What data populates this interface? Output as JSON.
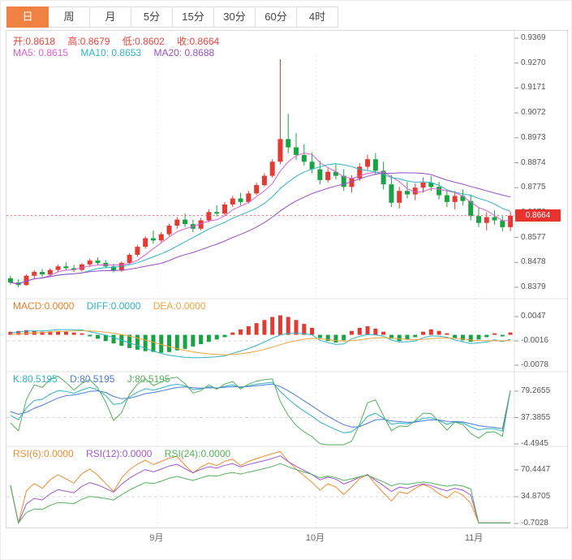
{
  "tabbar": {
    "tabs": [
      {
        "label": "日",
        "active": true
      },
      {
        "label": "周",
        "active": false
      },
      {
        "label": "月",
        "active": false
      },
      {
        "label": "5分",
        "active": false
      },
      {
        "label": "15分",
        "active": false
      },
      {
        "label": "30分",
        "active": false
      },
      {
        "label": "60分",
        "active": false
      },
      {
        "label": "4时",
        "active": false
      }
    ]
  },
  "legends": {
    "ohlc": {
      "open": "开:0.8618",
      "high": "高:0.8679",
      "low": "低:0.8602",
      "close": "收:0.8664"
    },
    "ma": {
      "ma5": "MA5: 0.8615",
      "ma10": "MA10: 0.8653",
      "ma20": "MA20: 0.8688"
    },
    "macd": {
      "macd": "MACD:0.0000",
      "diff": "DIFF:0.0000",
      "dea": "DEA:0.0000"
    },
    "kdj": {
      "k": "K:80.5195",
      "d": "D:80.5195",
      "j": "J:80.5195"
    },
    "rsi": {
      "rsi6": "RSI(6):0.0000",
      "rsi12": "RSI(12):0.0000",
      "rsi24": "RSI(24):0.0000"
    }
  },
  "colors": {
    "up": "#e23b33",
    "down": "#18a344",
    "ohlc_text": "#e8453c",
    "ma5": "#de5ed2",
    "ma10": "#2fb3c6",
    "ma20": "#9a4ec5",
    "macd_label": "#f07e28",
    "diff": "#2fb3c6",
    "dea": "#f0a43c",
    "k": "#2fb3c6",
    "d": "#4a7bd4",
    "j": "#53b25a",
    "rsi6": "#f08d2f",
    "rsi12": "#a356cf",
    "rsi24": "#53b25a",
    "price_line": "#f06a6a",
    "price_badge_bg": "#e8322e",
    "tab_active_bg": "#f08142"
  },
  "chart_data": {
    "type": "candlestick",
    "panels": [
      "price_ma",
      "macd",
      "kdj",
      "rsi"
    ],
    "x_axis": {
      "month_ticks": [
        {
          "label": "9月",
          "bar": 19
        },
        {
          "label": "10月",
          "bar": 39
        },
        {
          "label": "11月",
          "bar": 59
        }
      ]
    },
    "price_panel": {
      "yticks": [
        "0.9369",
        "0.9270",
        "0.9171",
        "0.9072",
        "0.8973",
        "0.8874",
        "0.8775",
        "0.8676",
        "0.8577",
        "0.8478",
        "0.8379"
      ],
      "ymax": 0.9369,
      "ymin": 0.8379,
      "last_price": "0.8664",
      "ma_periods": [
        5,
        10,
        20
      ],
      "candles_ohlc": [
        [
          0.8415,
          0.8425,
          0.839,
          0.8398
        ],
        [
          0.8398,
          0.8412,
          0.8379,
          0.8388
        ],
        [
          0.8388,
          0.843,
          0.8385,
          0.8425
        ],
        [
          0.8425,
          0.8448,
          0.8415,
          0.844
        ],
        [
          0.844,
          0.8452,
          0.842,
          0.843
        ],
        [
          0.843,
          0.8455,
          0.8422,
          0.8448
        ],
        [
          0.8448,
          0.847,
          0.8438,
          0.8462
        ],
        [
          0.8462,
          0.8478,
          0.8448,
          0.8455
        ],
        [
          0.8455,
          0.8468,
          0.844,
          0.8448
        ],
        [
          0.8448,
          0.8475,
          0.8442,
          0.847
        ],
        [
          0.847,
          0.8492,
          0.846,
          0.8485
        ],
        [
          0.8485,
          0.8498,
          0.8468,
          0.8476
        ],
        [
          0.8476,
          0.8488,
          0.8455,
          0.8462
        ],
        [
          0.8462,
          0.8472,
          0.8438,
          0.8445
        ],
        [
          0.8445,
          0.8482,
          0.844,
          0.8476
        ],
        [
          0.8476,
          0.8515,
          0.847,
          0.8508
        ],
        [
          0.8508,
          0.8548,
          0.85,
          0.854
        ],
        [
          0.854,
          0.8582,
          0.8532,
          0.8574
        ],
        [
          0.8574,
          0.8605,
          0.8552,
          0.8565
        ],
        [
          0.8565,
          0.8598,
          0.8558,
          0.859
        ],
        [
          0.859,
          0.8632,
          0.8582,
          0.8624
        ],
        [
          0.8624,
          0.8658,
          0.8612,
          0.8648
        ],
        [
          0.8648,
          0.8672,
          0.8618,
          0.863
        ],
        [
          0.863,
          0.8648,
          0.8598,
          0.8612
        ],
        [
          0.8612,
          0.8655,
          0.8605,
          0.8645
        ],
        [
          0.8645,
          0.8688,
          0.8638,
          0.8678
        ],
        [
          0.8678,
          0.8705,
          0.866,
          0.8672
        ],
        [
          0.8672,
          0.8718,
          0.8665,
          0.8708
        ],
        [
          0.8708,
          0.8742,
          0.8698,
          0.8732
        ],
        [
          0.8732,
          0.8755,
          0.8705,
          0.8718
        ],
        [
          0.8718,
          0.8762,
          0.8712,
          0.8752
        ],
        [
          0.8752,
          0.8795,
          0.8745,
          0.8785
        ],
        [
          0.8785,
          0.8832,
          0.8778,
          0.8822
        ],
        [
          0.8822,
          0.8888,
          0.8815,
          0.8878
        ],
        [
          0.8878,
          0.9285,
          0.8868,
          0.8968
        ],
        [
          0.8968,
          0.9068,
          0.8912,
          0.8935
        ],
        [
          0.8935,
          0.8992,
          0.8885,
          0.8905
        ],
        [
          0.8905,
          0.8948,
          0.8862,
          0.8878
        ],
        [
          0.8878,
          0.8915,
          0.8832,
          0.8848
        ],
        [
          0.8848,
          0.8882,
          0.8788,
          0.8805
        ],
        [
          0.8805,
          0.8852,
          0.8795,
          0.8838
        ],
        [
          0.8838,
          0.8868,
          0.8808,
          0.8822
        ],
        [
          0.8822,
          0.8848,
          0.8762,
          0.8778
        ],
        [
          0.8778,
          0.8825,
          0.8755,
          0.8812
        ],
        [
          0.8812,
          0.8872,
          0.8802,
          0.8858
        ],
        [
          0.8858,
          0.8905,
          0.8845,
          0.8888
        ],
        [
          0.8888,
          0.8912,
          0.8825,
          0.8842
        ],
        [
          0.8842,
          0.8878,
          0.8768,
          0.8788
        ],
        [
          0.8788,
          0.8825,
          0.8698,
          0.8715
        ],
        [
          0.8715,
          0.8778,
          0.8692,
          0.8762
        ],
        [
          0.8762,
          0.8798,
          0.8732,
          0.8748
        ],
        [
          0.8748,
          0.8792,
          0.8725,
          0.8775
        ],
        [
          0.8775,
          0.8815,
          0.8755,
          0.8795
        ],
        [
          0.8795,
          0.8822,
          0.8762,
          0.8778
        ],
        [
          0.8778,
          0.8798,
          0.8728,
          0.8745
        ],
        [
          0.8745,
          0.8768,
          0.8698,
          0.8718
        ],
        [
          0.8718,
          0.8762,
          0.8688,
          0.8742
        ],
        [
          0.8742,
          0.8768,
          0.8705,
          0.8722
        ],
        [
          0.8722,
          0.8748,
          0.8645,
          0.8662
        ],
        [
          0.8662,
          0.8695,
          0.8618,
          0.8635
        ],
        [
          0.8635,
          0.8678,
          0.8605,
          0.8658
        ],
        [
          0.8658,
          0.8685,
          0.8628,
          0.8645
        ],
        [
          0.8645,
          0.8662,
          0.8602,
          0.8618
        ],
        [
          0.8618,
          0.8679,
          0.8602,
          0.8664
        ]
      ]
    },
    "macd_panel": {
      "yticks": [
        "0.0047",
        "-0.0016",
        "-0.0078"
      ],
      "ymax": 0.0047,
      "ymin": -0.0078,
      "histogram": [
        0.0008,
        0.001,
        0.0012,
        0.001,
        0.0008,
        0.0009,
        0.001,
        0.0008,
        0.0006,
        0.0004,
        -0.0004,
        -0.001,
        -0.0016,
        -0.0022,
        -0.0028,
        -0.0034,
        -0.0038,
        -0.0042,
        -0.0044,
        -0.0046,
        -0.0044,
        -0.004,
        -0.0036,
        -0.003,
        -0.0024,
        -0.0018,
        -0.0012,
        -0.0006,
        0.0006,
        0.0014,
        0.0022,
        0.003,
        0.0038,
        0.0046,
        0.005,
        0.0046,
        0.0038,
        0.0028,
        0.0018,
        -0.0008,
        -0.0016,
        -0.002,
        -0.0014,
        0.001,
        0.0018,
        0.0022,
        0.0016,
        0.0008,
        -0.001,
        -0.0016,
        -0.0012,
        -0.0006,
        0.0008,
        0.0014,
        0.001,
        0.0004,
        -0.0008,
        -0.0014,
        -0.0018,
        -0.0012,
        -0.0006,
        0.0004,
        -0.0004,
        0.0006
      ]
    },
    "kdj_panel": {
      "yticks": [
        "79.2655",
        "37.3855",
        "-4.4945"
      ],
      "ytop": 79.2655,
      "ybottom": -4.4945,
      "periods": [
        9,
        3,
        3
      ],
      "final_value": 80.5195
    },
    "rsi_panel": {
      "yticks": [
        "70.4447",
        "34.8705",
        "-0.7028"
      ],
      "ytop": 70.4447,
      "ybottom": -0.7028,
      "periods": [
        6,
        12,
        24
      ],
      "final_value": 0,
      "flat_tail_bars": 5
    }
  }
}
